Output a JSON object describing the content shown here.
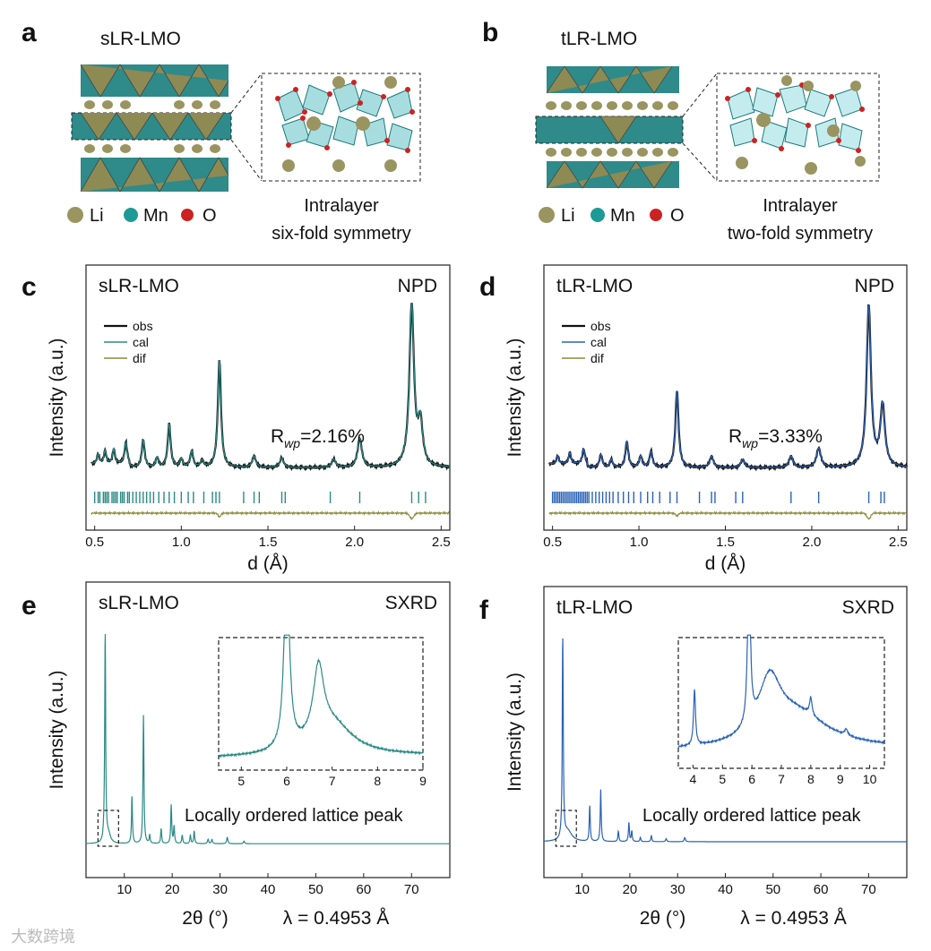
{
  "panels": {
    "a": {
      "letter": "a",
      "title": "sLR-LMO",
      "caption": [
        "Intralayer",
        "six-fold symmetry"
      ]
    },
    "b": {
      "letter": "b",
      "title": "tLR-LMO",
      "caption": [
        "Intralayer",
        "two-fold symmetry"
      ]
    },
    "c": {
      "letter": "c"
    },
    "d": {
      "letter": "d"
    },
    "e": {
      "letter": "e"
    },
    "f": {
      "letter": "f"
    }
  },
  "legend_atoms": {
    "li": "Li",
    "mn": "Mn",
    "o": "O"
  },
  "colors": {
    "teal": "#2a8a86",
    "blue": "#2a62b6",
    "olive": "#8a8a3a",
    "li_atom": "#9a9460",
    "mn_atom": "#1e9a96",
    "o_atom": "#cc2222",
    "mn_poly": "#3aa6a8",
    "li_poly": "#8e8a54"
  },
  "watermark": "大数跨境",
  "chart_data": [
    {
      "id": "c",
      "type": "line",
      "sample": "sLR-LMO",
      "technique": "NPD",
      "xlabel": "d (Å)",
      "ylabel": "Intensity (a.u.)",
      "xlim": [
        0.45,
        2.55
      ],
      "xticks": [
        0.5,
        1.0,
        1.5,
        2.0,
        2.5
      ],
      "xtick_labels": [
        "0.5",
        "1.0",
        "1.5",
        "2.0",
        "2.5"
      ],
      "legend": [
        "obs",
        "cal",
        "dif"
      ],
      "annotation": {
        "main": "R",
        "sub": "wp",
        "value": "=2.16%"
      },
      "baseline": 8,
      "peaks": [
        {
          "x": 0.52,
          "h": 6,
          "w": 0.008
        },
        {
          "x": 0.56,
          "h": 8,
          "w": 0.008
        },
        {
          "x": 0.61,
          "h": 9,
          "w": 0.008
        },
        {
          "x": 0.68,
          "h": 13,
          "w": 0.009
        },
        {
          "x": 0.78,
          "h": 17,
          "w": 0.01
        },
        {
          "x": 0.86,
          "h": 6,
          "w": 0.009
        },
        {
          "x": 0.93,
          "h": 27,
          "w": 0.01
        },
        {
          "x": 1.0,
          "h": 5,
          "w": 0.01
        },
        {
          "x": 1.06,
          "h": 10,
          "w": 0.01
        },
        {
          "x": 1.12,
          "h": 4,
          "w": 0.01
        },
        {
          "x": 1.22,
          "h": 67,
          "w": 0.011
        },
        {
          "x": 1.42,
          "h": 7,
          "w": 0.013
        },
        {
          "x": 1.58,
          "h": 6,
          "w": 0.013
        },
        {
          "x": 1.88,
          "h": 5,
          "w": 0.014
        },
        {
          "x": 2.03,
          "h": 18,
          "w": 0.015
        },
        {
          "x": 2.33,
          "h": 100,
          "w": 0.016
        },
        {
          "x": 2.38,
          "h": 26,
          "w": 0.016
        }
      ],
      "reflections": [
        0.5,
        0.52,
        0.53,
        0.55,
        0.56,
        0.57,
        0.58,
        0.6,
        0.61,
        0.62,
        0.63,
        0.65,
        0.66,
        0.67,
        0.69,
        0.7,
        0.72,
        0.74,
        0.76,
        0.78,
        0.8,
        0.82,
        0.84,
        0.87,
        0.9,
        0.93,
        0.96,
        1.0,
        1.04,
        1.07,
        1.13,
        1.18,
        1.2,
        1.22,
        1.36,
        1.42,
        1.45,
        1.58,
        1.6,
        1.86,
        2.03,
        2.33,
        2.37,
        2.41
      ]
    },
    {
      "id": "d",
      "type": "line",
      "sample": "tLR-LMO",
      "technique": "NPD",
      "xlabel": "d (Å)",
      "ylabel": "Intensity (a.u.)",
      "xlim": [
        0.45,
        2.55
      ],
      "xticks": [
        0.5,
        1.0,
        1.5,
        2.0,
        2.5
      ],
      "xtick_labels": [
        "0.5",
        "1.0",
        "1.5",
        "2.0",
        "2.5"
      ],
      "legend": [
        "obs",
        "cal",
        "dif"
      ],
      "annotation": {
        "main": "R",
        "sub": "wp",
        "value": "=3.33%"
      },
      "baseline": 8,
      "peaks": [
        {
          "x": 0.53,
          "h": 5,
          "w": 0.008
        },
        {
          "x": 0.6,
          "h": 7,
          "w": 0.008
        },
        {
          "x": 0.68,
          "h": 9,
          "w": 0.009
        },
        {
          "x": 0.78,
          "h": 8,
          "w": 0.01
        },
        {
          "x": 0.84,
          "h": 5,
          "w": 0.009
        },
        {
          "x": 0.93,
          "h": 16,
          "w": 0.01
        },
        {
          "x": 1.01,
          "h": 7,
          "w": 0.01
        },
        {
          "x": 1.07,
          "h": 10,
          "w": 0.01
        },
        {
          "x": 1.22,
          "h": 48,
          "w": 0.011
        },
        {
          "x": 1.42,
          "h": 7,
          "w": 0.013
        },
        {
          "x": 1.6,
          "h": 5,
          "w": 0.013
        },
        {
          "x": 1.88,
          "h": 7,
          "w": 0.014
        },
        {
          "x": 2.04,
          "h": 12,
          "w": 0.015
        },
        {
          "x": 2.33,
          "h": 100,
          "w": 0.015
        },
        {
          "x": 2.41,
          "h": 38,
          "w": 0.016
        }
      ],
      "reflections": [
        0.5,
        0.51,
        0.52,
        0.53,
        0.54,
        0.55,
        0.56,
        0.57,
        0.58,
        0.59,
        0.6,
        0.61,
        0.62,
        0.63,
        0.64,
        0.65,
        0.66,
        0.67,
        0.68,
        0.69,
        0.7,
        0.71,
        0.73,
        0.75,
        0.77,
        0.79,
        0.81,
        0.83,
        0.85,
        0.88,
        0.91,
        0.94,
        0.97,
        1.01,
        1.05,
        1.08,
        1.12,
        1.18,
        1.22,
        1.35,
        1.42,
        1.44,
        1.56,
        1.6,
        1.88,
        2.04,
        2.33,
        2.4,
        2.42
      ]
    },
    {
      "id": "e",
      "type": "line",
      "sample": "sLR-LMO",
      "technique": "SXRD",
      "xlabel": "2θ (°)",
      "wavelength": "λ = 0.4953 Å",
      "ylabel": "Intensity (a.u.)",
      "xlim": [
        2,
        78
      ],
      "xticks": [
        10,
        20,
        30,
        40,
        50,
        60,
        70
      ],
      "xtick_labels": [
        "10",
        "20",
        "30",
        "40",
        "50",
        "60",
        "70"
      ],
      "note": "Locally ordered lattice peak",
      "baseline": 2,
      "peaks": [
        {
          "x": 6.0,
          "h": 100,
          "w": 0.12
        },
        {
          "x": 6.7,
          "h": 4,
          "w": 0.5
        },
        {
          "x": 11.6,
          "h": 22,
          "w": 0.12
        },
        {
          "x": 14.0,
          "h": 60,
          "w": 0.12
        },
        {
          "x": 15.3,
          "h": 4,
          "w": 0.12
        },
        {
          "x": 17.7,
          "h": 7,
          "w": 0.12
        },
        {
          "x": 19.8,
          "h": 18,
          "w": 0.12
        },
        {
          "x": 20.4,
          "h": 8,
          "w": 0.12
        },
        {
          "x": 22.1,
          "h": 4,
          "w": 0.12
        },
        {
          "x": 23.8,
          "h": 4,
          "w": 0.12
        },
        {
          "x": 24.6,
          "h": 6,
          "w": 0.12
        },
        {
          "x": 27.5,
          "h": 2,
          "w": 0.14
        },
        {
          "x": 28.3,
          "h": 2,
          "w": 0.14
        },
        {
          "x": 31.5,
          "h": 3,
          "w": 0.15
        },
        {
          "x": 35.0,
          "h": 1.2,
          "w": 0.15
        }
      ],
      "inset": {
        "xlim": [
          4.5,
          9
        ],
        "xticks": [
          5,
          6,
          7,
          8,
          9
        ],
        "xtick_labels": [
          "5",
          "6",
          "7",
          "8",
          "9"
        ],
        "peaks": [
          {
            "x": 6.0,
            "h": 150,
            "w": 0.07
          },
          {
            "x": 6.7,
            "h": 56,
            "w": 0.14
          },
          {
            "x": 7.0,
            "h": 25,
            "w": 0.55
          }
        ],
        "baseline_start": 4,
        "baseline_end": 6,
        "ymax": 100
      }
    },
    {
      "id": "f",
      "type": "line",
      "sample": "tLR-LMO",
      "technique": "SXRD",
      "xlabel": "2θ (°)",
      "wavelength": "λ = 0.4953 Å",
      "ylabel": "Intensity (a.u.)",
      "xlim": [
        2,
        78
      ],
      "xticks": [
        10,
        20,
        30,
        40,
        50,
        60,
        70
      ],
      "xtick_labels": [
        "10",
        "20",
        "30",
        "40",
        "50",
        "60",
        "70"
      ],
      "note": "Locally ordered lattice peak",
      "baseline": 3,
      "peaks": [
        {
          "x": 5.95,
          "h": 100,
          "w": 0.12
        },
        {
          "x": 7.0,
          "h": 5,
          "w": 1.0
        },
        {
          "x": 11.6,
          "h": 17,
          "w": 0.12
        },
        {
          "x": 13.9,
          "h": 25,
          "w": 0.12
        },
        {
          "x": 17.6,
          "h": 5,
          "w": 0.12
        },
        {
          "x": 19.8,
          "h": 9,
          "w": 0.12
        },
        {
          "x": 20.4,
          "h": 5,
          "w": 0.12
        },
        {
          "x": 22.2,
          "h": 2,
          "w": 0.12
        },
        {
          "x": 24.5,
          "h": 3,
          "w": 0.12
        },
        {
          "x": 27.6,
          "h": 1.5,
          "w": 0.14
        },
        {
          "x": 31.5,
          "h": 2,
          "w": 0.15
        }
      ],
      "inset": {
        "xlim": [
          3.5,
          10.5
        ],
        "xticks": [
          4,
          5,
          6,
          7,
          8,
          9,
          10
        ],
        "xtick_labels": [
          "4",
          "5",
          "6",
          "7",
          "8",
          "9",
          "10"
        ],
        "peaks": [
          {
            "x": 4.05,
            "h": 45,
            "w": 0.04
          },
          {
            "x": 5.9,
            "h": 150,
            "w": 0.05
          },
          {
            "x": 6.6,
            "h": 45,
            "w": 0.45
          },
          {
            "x": 7.5,
            "h": 28,
            "w": 1.3
          },
          {
            "x": 8.0,
            "h": 14,
            "w": 0.05
          },
          {
            "x": 9.2,
            "h": 5,
            "w": 0.06
          }
        ],
        "baseline_start": 8,
        "baseline_end": 10,
        "ymax": 100
      }
    }
  ]
}
